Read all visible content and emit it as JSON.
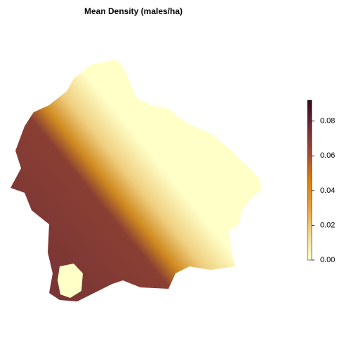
{
  "title": "Mean Density (males/ha)",
  "colorbar": {
    "lim": [
      0,
      0.092
    ],
    "ticks": [
      {
        "value": 0,
        "label": "0.00"
      },
      {
        "value": 0.02,
        "label": "0.02"
      },
      {
        "value": 0.04,
        "label": "0.04"
      },
      {
        "value": 0.06,
        "label": "0.06"
      },
      {
        "value": 0.08,
        "label": "0.08"
      }
    ],
    "colors": [
      "#ffffc8",
      "#f3d88c",
      "#e5a03a",
      "#d97f0a",
      "#a04a35",
      "#6e2c35",
      "#2e0c1a"
    ]
  }
}
